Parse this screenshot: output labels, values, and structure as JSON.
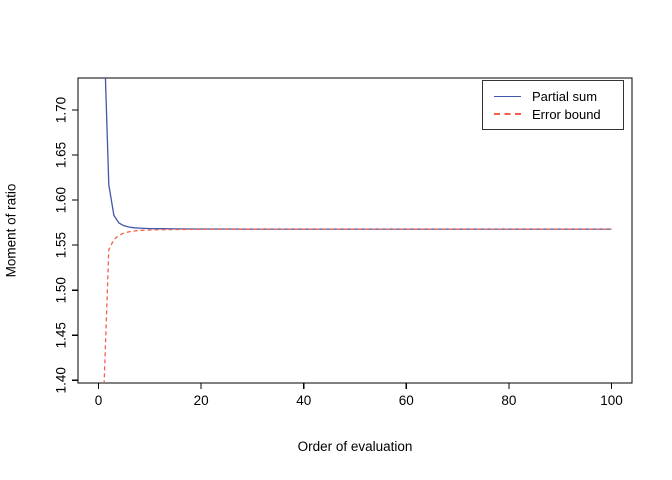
{
  "chart_data": {
    "type": "line",
    "title": "",
    "xlabel": "Order of evaluation",
    "ylabel": "Moment of ratio",
    "grid": false,
    "legend_position": "topright",
    "x_range_usr": [
      -4,
      104
    ],
    "y_range_usr": [
      1.397,
      1.7355
    ],
    "x_ticks": [
      0,
      20,
      40,
      60,
      80,
      100
    ],
    "x_tick_labels": [
      "0",
      "20",
      "40",
      "60",
      "80",
      "100"
    ],
    "y_ticks": [
      1.4,
      1.45,
      1.5,
      1.55,
      1.6,
      1.65,
      1.7
    ],
    "y_tick_labels": [
      "1.40",
      "1.45",
      "1.50",
      "1.55",
      "1.60",
      "1.65",
      "1.70"
    ],
    "convergence_value": 1.5678,
    "x": [
      1,
      2,
      3,
      4,
      5,
      6,
      7,
      8,
      9,
      10,
      12,
      15,
      20,
      25,
      30,
      40,
      50,
      60,
      70,
      80,
      90,
      100
    ],
    "series": [
      {
        "name": "Partial sum",
        "color": "#4156a8",
        "style": "solid",
        "values": [
          1.8,
          1.617,
          1.583,
          1.5745,
          1.5715,
          1.57,
          1.5693,
          1.5689,
          1.5686,
          1.5684,
          1.5682,
          1.568,
          1.5679,
          1.5679,
          1.5678,
          1.5678,
          1.5678,
          1.5678,
          1.5678,
          1.5678,
          1.5678,
          1.5678
        ]
      },
      {
        "name": "Error bound",
        "color": "#f4604a",
        "style": "dashed",
        "values": [
          1.38,
          1.545,
          1.556,
          1.561,
          1.5635,
          1.5649,
          1.5657,
          1.5662,
          1.5666,
          1.5668,
          1.5671,
          1.5674,
          1.5676,
          1.5677,
          1.5677,
          1.5678,
          1.5678,
          1.5678,
          1.5678,
          1.5678,
          1.5678,
          1.5678
        ]
      }
    ],
    "frame_color": "#000000",
    "background_color": "#ffffff"
  }
}
